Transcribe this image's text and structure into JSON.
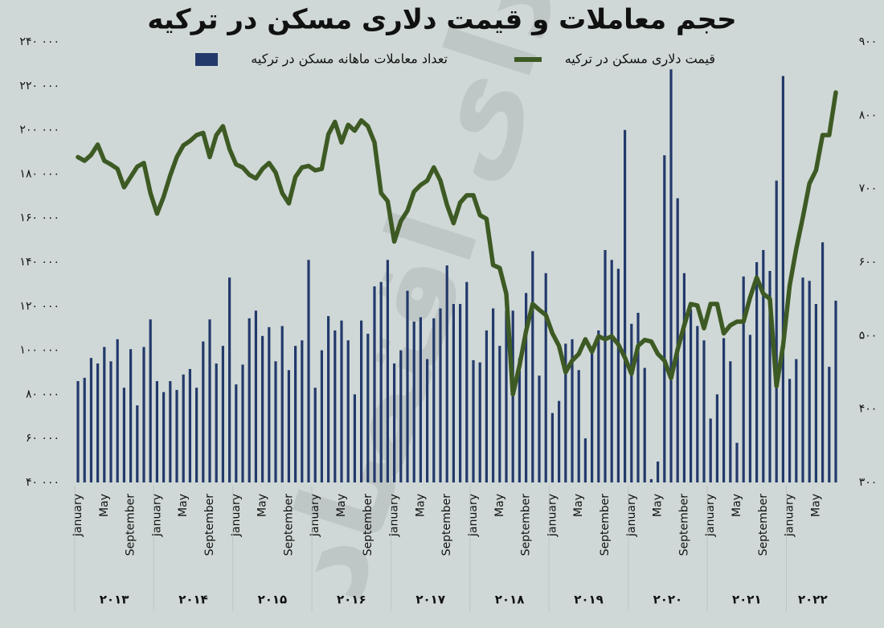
{
  "chart_data": {
    "type": "bar",
    "title": "حجم معاملات و قیمت دلاری مسکن در ترکیه",
    "watermark": "فردای اقتصاد",
    "categories": [
      "January",
      null,
      null,
      null,
      "May",
      null,
      null,
      null,
      "September",
      null,
      null,
      null,
      "January",
      null,
      null,
      null,
      "May",
      null,
      null,
      null,
      "September",
      null,
      null,
      null,
      "January",
      null,
      null,
      null,
      "May",
      null,
      null,
      null,
      "September",
      null,
      null,
      null,
      "January",
      null,
      null,
      null,
      "May",
      null,
      null,
      null,
      "September",
      null,
      null,
      null,
      "January",
      null,
      null,
      null,
      "May",
      null,
      null,
      null,
      "September",
      null,
      null,
      null,
      "January",
      null,
      null,
      null,
      "May",
      null,
      null,
      null,
      "September",
      null,
      null,
      null,
      "January",
      null,
      null,
      null,
      "May",
      null,
      null,
      null,
      "September",
      null,
      null,
      null,
      "January",
      null,
      null,
      null,
      "May",
      null,
      null,
      null,
      "September",
      null,
      null,
      null,
      "January",
      null,
      null,
      null,
      "May",
      null,
      null,
      null,
      "September",
      null,
      null,
      null,
      "January",
      null,
      null,
      null,
      "May",
      null,
      null,
      null
    ],
    "years": [
      "۲۰۱۳",
      "۲۰۱۴",
      "۲۰۱۵",
      "۲۰۱۶",
      "۲۰۱۷",
      "۲۰۱۸",
      "۲۰۱۹",
      "۲۰۲۰",
      "۲۰۲۱",
      "۲۰۲۲"
    ],
    "series": [
      {
        "name": "تعداد معاملات ماهانه مسکن در ترکیه",
        "type": "bar",
        "axis": "y",
        "color": "#23396b",
        "values": [
          86000,
          87500,
          96500,
          94000,
          101500,
          95000,
          105000,
          83000,
          100500,
          75000,
          101500,
          114000,
          86000,
          81000,
          86000,
          82000,
          89000,
          91500,
          83000,
          104000,
          114000,
          94000,
          102000,
          133000,
          84500,
          93500,
          114500,
          118000,
          106500,
          110500,
          95000,
          111000,
          91000,
          102000,
          104500,
          141000,
          83000,
          100000,
          115500,
          109000,
          113500,
          104500,
          80000,
          113500,
          107500,
          129000,
          131000,
          141000,
          94000,
          100000,
          127000,
          113000,
          115000,
          96000,
          114500,
          119000,
          138500,
          121000,
          121000,
          131000,
          95500,
          94500,
          109000,
          119000,
          102000,
          118000,
          118000,
          96500,
          126000,
          145000,
          88500,
          135000,
          71500,
          77000,
          103000,
          105000,
          91000,
          60000,
          100000,
          109000,
          145500,
          141000,
          137000,
          200000,
          112000,
          117000,
          92000,
          41500,
          49500,
          188500,
          227500,
          169000,
          135000,
          118500,
          111000,
          104500,
          69000,
          80000,
          105500,
          95000,
          58000,
          133500,
          107000,
          140000,
          145500,
          136000,
          177000,
          224500,
          87000,
          96000,
          133000,
          131500,
          121000,
          149000,
          92500,
          122500
        ]
      },
      {
        "name": "قیمت دلاری مسکن در ترکیه",
        "type": "line",
        "axis": "y2",
        "color": "#3e5a24",
        "values": [
          743,
          738,
          746,
          760,
          738,
          733,
          727,
          702,
          716,
          730,
          735,
          694,
          666,
          689,
          718,
          743,
          759,
          765,
          773,
          776,
          743,
          773,
          785,
          754,
          733,
          729,
          719,
          714,
          727,
          735,
          722,
          694,
          680,
          716,
          729,
          731,
          725,
          727,
          774,
          791,
          763,
          787,
          779,
          793,
          785,
          763,
          694,
          683,
          628,
          656,
          670,
          696,
          705,
          711,
          729,
          711,
          678,
          653,
          681,
          691,
          691,
          664,
          659,
          596,
          592,
          557,
          420,
          459,
          506,
          543,
          535,
          528,
          503,
          486,
          450,
          466,
          475,
          495,
          478,
          499,
          495,
          499,
          488,
          470,
          448,
          486,
          494,
          492,
          475,
          466,
          442,
          481,
          514,
          543,
          541,
          510,
          543,
          543,
          503,
          514,
          519,
          519,
          552,
          579,
          557,
          550,
          431,
          486,
          568,
          618,
          661,
          707,
          725,
          773,
          773,
          831
        ]
      }
    ],
    "ylim": [
      40000,
      240000
    ],
    "yticks": [
      {
        "value": 40000,
        "label": "۴۰ ۰۰۰"
      },
      {
        "value": 60000,
        "label": "۶۰ ۰۰۰"
      },
      {
        "value": 80000,
        "label": "۸۰ ۰۰۰"
      },
      {
        "value": 100000,
        "label": "۱۰۰ ۰۰۰"
      },
      {
        "value": 120000,
        "label": "۱۲۰ ۰۰۰"
      },
      {
        "value": 140000,
        "label": "۱۴۰ ۰۰۰"
      },
      {
        "value": 160000,
        "label": "۱۶۰ ۰۰۰"
      },
      {
        "value": 180000,
        "label": "۱۸۰ ۰۰۰"
      },
      {
        "value": 200000,
        "label": "۲۰۰ ۰۰۰"
      },
      {
        "value": 220000,
        "label": "۲۲۰ ۰۰۰"
      },
      {
        "value": 240000,
        "label": "۲۴۰ ۰۰۰"
      }
    ],
    "y2lim": [
      300,
      900
    ],
    "y2ticks": [
      {
        "value": 300,
        "label": "۳۰۰"
      },
      {
        "value": 400,
        "label": "۴۰۰"
      },
      {
        "value": 500,
        "label": "۵۰۰"
      },
      {
        "value": 600,
        "label": "۶۰۰"
      },
      {
        "value": 700,
        "label": "۷۰۰"
      },
      {
        "value": 800,
        "label": "۸۰۰"
      },
      {
        "value": 900,
        "label": "۹۰۰"
      }
    ],
    "grid": false
  }
}
